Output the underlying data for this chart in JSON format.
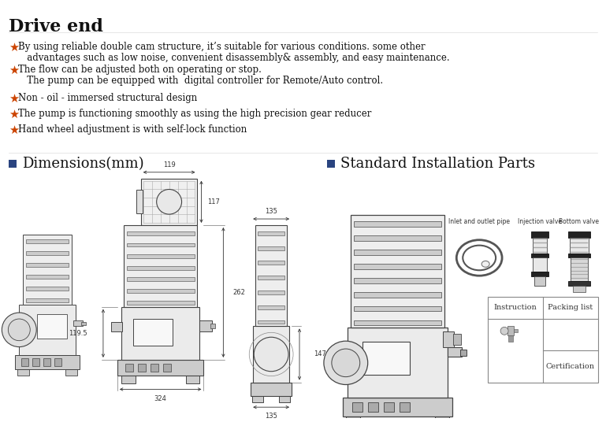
{
  "title": "Drive end",
  "title_color": "#111111",
  "title_fontsize": 16,
  "background_color": "#ffffff",
  "star_color": "#cc4400",
  "bullet_color": "#2a4480",
  "bullets": [
    {
      "line1": "By using reliable double cam structure, it’s suitable for various conditions. some other",
      "line2": "   advantages such as low noise, convenient disassembly& assembly, and easy maintenance."
    },
    {
      "line1": "The flow can be adjusted both on operating or stop.",
      "line2": "   The pump can be equipped with  digital controller for Remote/Auto control."
    },
    {
      "line1": "Non - oil - immersed structural design",
      "line2": null
    },
    {
      "line1": "The pump is functioning smoothly as using the high precision gear reducer",
      "line2": null
    },
    {
      "line1": "Hand wheel adjustment is with self-lock function",
      "line2": null
    }
  ],
  "section_left_title": "Dimensions(mm)",
  "section_right_title": "Standard Installation Parts",
  "section_title_fontsize": 13,
  "text_fontsize": 8.5,
  "text_color": "#111111",
  "line_color": "#888888",
  "pump_line_color": "#444444",
  "pump_face_color": "#f4f4f4",
  "pump_dark_color": "#cccccc"
}
